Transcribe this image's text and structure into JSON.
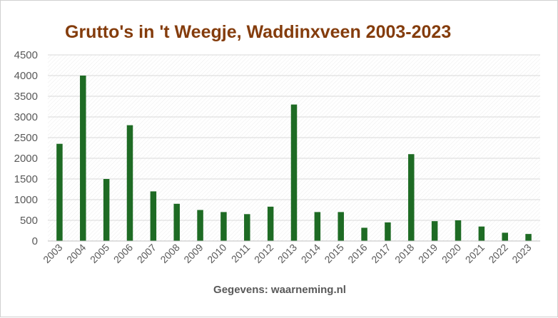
{
  "chart_data": {
    "type": "bar",
    "title": "Grutto's in 't Weegje, Waddinxveen 2003-2023",
    "xlabel": "Gegevens: waarneming.nl",
    "ylabel": "",
    "ylim": [
      0,
      4500
    ],
    "yticks": [
      0,
      500,
      1000,
      1500,
      2000,
      2500,
      3000,
      3500,
      4000,
      4500
    ],
    "grid": true,
    "legend": "none",
    "categories": [
      "2003",
      "2004",
      "2005",
      "2006",
      "2007",
      "2008",
      "2009",
      "2010",
      "2011",
      "2012",
      "2013",
      "2014",
      "2015",
      "2016",
      "2017",
      "2018",
      "2019",
      "2020",
      "2021",
      "2022",
      "2023"
    ],
    "values": [
      2350,
      4000,
      1500,
      2800,
      1200,
      900,
      750,
      700,
      650,
      830,
      3300,
      700,
      700,
      320,
      450,
      2100,
      480,
      500,
      350,
      200,
      170
    ],
    "colors": {
      "bar": "#1e6b24",
      "title": "#843c0c",
      "grid": "#d9d9d9",
      "axis_text": "#595959"
    }
  }
}
